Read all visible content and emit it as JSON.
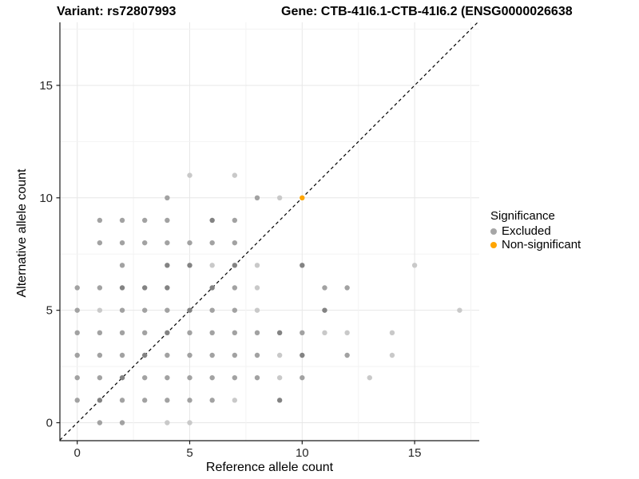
{
  "titles": {
    "left": "Variant: rs72807993",
    "right": "Gene: CTB-41I6.1-CTB-41I6.2 (ENSG0000026638"
  },
  "chart_data": {
    "type": "scatter",
    "title": "Variant: rs72807993 / Gene: CTB-41I6.1-CTB-41I6.2 (ENSG0000026638",
    "xlabel": "Reference allele count",
    "ylabel": "Alternative allele count",
    "x_ticks": [
      0,
      5,
      10,
      15
    ],
    "y_ticks": [
      0,
      5,
      10,
      15
    ],
    "xlim": [
      -0.85,
      17.85
    ],
    "ylim": [
      -0.85,
      17.85
    ],
    "grid": {
      "shown": true,
      "major_every": 5,
      "minor_every": 2.5,
      "major_color": "#e7e7e7",
      "minor_color": "#f3f3f3"
    },
    "identity_line": {
      "equation": "y = x",
      "style": "dashed",
      "color": "#000000"
    },
    "legend": {
      "title": "Significance",
      "position": "right",
      "items": [
        {
          "label": "Excluded",
          "color": "#a6a6a6"
        },
        {
          "label": "Non-significant",
          "color": "#FFA500"
        }
      ]
    },
    "shade_colors": {
      "1": "#c9c9c9",
      "2": "#a2a2a2",
      "3": "#838383"
    },
    "series": [
      {
        "name": "Excluded",
        "color": "#a2a2a2",
        "points": [
          [
            1,
            0,
            2
          ],
          [
            2,
            0,
            2
          ],
          [
            4,
            0,
            1
          ],
          [
            5,
            0,
            1
          ],
          [
            0,
            1,
            2
          ],
          [
            1,
            1,
            3
          ],
          [
            2,
            1,
            2
          ],
          [
            3,
            1,
            2
          ],
          [
            4,
            1,
            2
          ],
          [
            5,
            1,
            2
          ],
          [
            6,
            1,
            2
          ],
          [
            7,
            1,
            1
          ],
          [
            9,
            1,
            3
          ],
          [
            0,
            2,
            2
          ],
          [
            1,
            2,
            2
          ],
          [
            2,
            2,
            3
          ],
          [
            3,
            2,
            2
          ],
          [
            4,
            2,
            2
          ],
          [
            5,
            2,
            2
          ],
          [
            6,
            2,
            2
          ],
          [
            7,
            2,
            2
          ],
          [
            8,
            2,
            2
          ],
          [
            9,
            2,
            1
          ],
          [
            10,
            2,
            2
          ],
          [
            13,
            2,
            1
          ],
          [
            0,
            3,
            2
          ],
          [
            1,
            3,
            2
          ],
          [
            2,
            3,
            2
          ],
          [
            3,
            3,
            3
          ],
          [
            4,
            3,
            2
          ],
          [
            5,
            3,
            2
          ],
          [
            6,
            3,
            2
          ],
          [
            7,
            3,
            2
          ],
          [
            8,
            3,
            2
          ],
          [
            9,
            3,
            1
          ],
          [
            10,
            3,
            3
          ],
          [
            12,
            3,
            2
          ],
          [
            14,
            3,
            1
          ],
          [
            0,
            4,
            2
          ],
          [
            1,
            4,
            2
          ],
          [
            2,
            4,
            2
          ],
          [
            3,
            4,
            2
          ],
          [
            4,
            4,
            3
          ],
          [
            5,
            4,
            2
          ],
          [
            6,
            4,
            2
          ],
          [
            7,
            4,
            2
          ],
          [
            8,
            4,
            2
          ],
          [
            9,
            4,
            3
          ],
          [
            10,
            4,
            2
          ],
          [
            11,
            4,
            1
          ],
          [
            12,
            4,
            1
          ],
          [
            14,
            4,
            1
          ],
          [
            0,
            5,
            2
          ],
          [
            1,
            5,
            1
          ],
          [
            2,
            5,
            2
          ],
          [
            3,
            5,
            2
          ],
          [
            4,
            5,
            2
          ],
          [
            5,
            5,
            3
          ],
          [
            6,
            5,
            2
          ],
          [
            7,
            5,
            2
          ],
          [
            8,
            5,
            1
          ],
          [
            11,
            5,
            3
          ],
          [
            17,
            5,
            1
          ],
          [
            0,
            6,
            2
          ],
          [
            1,
            6,
            2
          ],
          [
            2,
            6,
            3
          ],
          [
            3,
            6,
            3
          ],
          [
            4,
            6,
            3
          ],
          [
            6,
            6,
            3
          ],
          [
            7,
            6,
            2
          ],
          [
            8,
            6,
            1
          ],
          [
            11,
            6,
            2
          ],
          [
            12,
            6,
            2
          ],
          [
            2,
            7,
            2
          ],
          [
            4,
            7,
            3
          ],
          [
            5,
            7,
            3
          ],
          [
            6,
            7,
            1
          ],
          [
            7,
            7,
            3
          ],
          [
            8,
            7,
            1
          ],
          [
            10,
            7,
            3
          ],
          [
            15,
            7,
            1
          ],
          [
            1,
            8,
            2
          ],
          [
            2,
            8,
            2
          ],
          [
            3,
            8,
            2
          ],
          [
            4,
            8,
            2
          ],
          [
            5,
            8,
            2
          ],
          [
            6,
            8,
            2
          ],
          [
            7,
            8,
            2
          ],
          [
            1,
            9,
            2
          ],
          [
            2,
            9,
            2
          ],
          [
            3,
            9,
            2
          ],
          [
            4,
            9,
            2
          ],
          [
            6,
            9,
            3
          ],
          [
            7,
            9,
            2
          ],
          [
            4,
            10,
            2
          ],
          [
            8,
            10,
            2
          ],
          [
            9,
            10,
            1
          ],
          [
            5,
            11,
            1
          ],
          [
            7,
            11,
            1
          ]
        ]
      },
      {
        "name": "Non-significant",
        "color": "#FFA500",
        "points": [
          [
            10,
            10,
            2
          ]
        ]
      }
    ]
  }
}
